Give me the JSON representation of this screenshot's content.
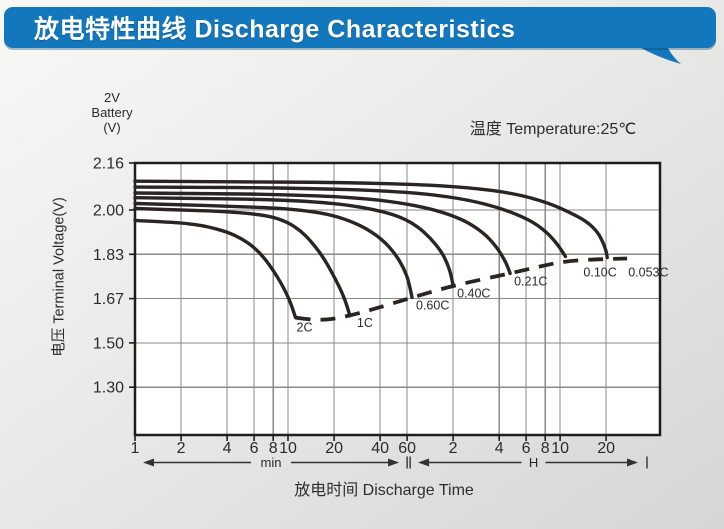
{
  "header": {
    "title": "放电特性曲线 Discharge Characteristics",
    "bg_color": "#1277BD"
  },
  "colors": {
    "curve": "#2A2422",
    "grid": "#8A8A8A",
    "border": "#1E1E1E",
    "text": "#2B2B2B",
    "plot_bg": "#FFFFFF"
  },
  "chart_data": {
    "type": "line",
    "title": "放电特性曲线 Discharge Characteristics",
    "xlabel": "放电时间 Discharge Time",
    "ylabel": "电压 Terminal Voltage(V)",
    "corner_label": [
      "2V",
      "Battery",
      "(V)"
    ],
    "annotation": "温度 Temperature:25℃",
    "grid": true,
    "x_axis": {
      "scale": "log",
      "unit": "minutes",
      "max_minutes": 2700,
      "ticks": [
        {
          "t": 1,
          "label": "1"
        },
        {
          "t": 2,
          "label": "2"
        },
        {
          "t": 4,
          "label": "4"
        },
        {
          "t": 6,
          "label": "6"
        },
        {
          "t": 8,
          "label": "8"
        },
        {
          "t": 10,
          "label": "10"
        },
        {
          "t": 20,
          "label": "20"
        },
        {
          "t": 40,
          "label": "40"
        },
        {
          "t": 60,
          "label": "60"
        },
        {
          "t": 120,
          "label": "2"
        },
        {
          "t": 240,
          "label": "4"
        },
        {
          "t": 360,
          "label": "6"
        },
        {
          "t": 480,
          "label": "8"
        },
        {
          "t": 600,
          "label": "10"
        },
        {
          "t": 1200,
          "label": "20"
        }
      ],
      "unit_segments": [
        {
          "label": "min",
          "from_t": 1,
          "to_t": 60
        },
        {
          "label": "H",
          "from_t": 60,
          "to_t": 2700
        }
      ]
    },
    "y_axis": {
      "tick_labels": [
        "2.16",
        "2.00",
        "1.83",
        "1.67",
        "1.50",
        "1.30"
      ],
      "ylim_top": 2.16
    },
    "series": [
      {
        "name": "2C",
        "points": [
          [
            1,
            1.96
          ],
          [
            1.5,
            1.955
          ],
          [
            2,
            1.95
          ],
          [
            2.5,
            1.944
          ],
          [
            3,
            1.936
          ],
          [
            4,
            1.916
          ],
          [
            5,
            1.89
          ],
          [
            6,
            1.857
          ],
          [
            7,
            1.817
          ],
          [
            8,
            1.772
          ],
          [
            9,
            1.727
          ],
          [
            10,
            1.677
          ],
          [
            10.7,
            1.634
          ],
          [
            11.2,
            1.597
          ]
        ]
      },
      {
        "name": "1C",
        "points": [
          [
            1,
            2.005
          ],
          [
            2,
            2.0
          ],
          [
            3,
            1.997
          ],
          [
            4,
            1.993
          ],
          [
            6,
            1.985
          ],
          [
            8,
            1.973
          ],
          [
            10,
            1.952
          ],
          [
            12,
            1.922
          ],
          [
            14,
            1.883
          ],
          [
            17,
            1.82
          ],
          [
            20,
            1.75
          ],
          [
            22.5,
            1.693
          ],
          [
            24.3,
            1.643
          ],
          [
            25.4,
            1.604
          ]
        ]
      },
      {
        "name": "0.60C",
        "points": [
          [
            1,
            2.022
          ],
          [
            2,
            2.018
          ],
          [
            4,
            2.013
          ],
          [
            8,
            2.007
          ],
          [
            12,
            2.0
          ],
          [
            18,
            1.985
          ],
          [
            25,
            1.96
          ],
          [
            33,
            1.927
          ],
          [
            42,
            1.883
          ],
          [
            50,
            1.833
          ],
          [
            57,
            1.782
          ],
          [
            62,
            1.728
          ],
          [
            64.6,
            1.674
          ]
        ]
      },
      {
        "name": "0.40C",
        "points": [
          [
            1,
            2.042
          ],
          [
            3,
            2.039
          ],
          [
            8,
            2.035
          ],
          [
            15,
            2.028
          ],
          [
            25,
            2.017
          ],
          [
            40,
            1.997
          ],
          [
            55,
            1.972
          ],
          [
            70,
            1.938
          ],
          [
            85,
            1.893
          ],
          [
            100,
            1.843
          ],
          [
            110,
            1.798
          ],
          [
            117,
            1.752
          ],
          [
            120,
            1.717
          ]
        ]
      },
      {
        "name": "0.21C",
        "points": [
          [
            1,
            2.058
          ],
          [
            4,
            2.056
          ],
          [
            10,
            2.052
          ],
          [
            25,
            2.044
          ],
          [
            50,
            2.028
          ],
          [
            90,
            2.002
          ],
          [
            140,
            1.963
          ],
          [
            190,
            1.913
          ],
          [
            230,
            1.86
          ],
          [
            260,
            1.81
          ],
          [
            275,
            1.781
          ],
          [
            283,
            1.761
          ]
        ]
      },
      {
        "name": "0.10C",
        "points": [
          [
            1,
            2.078
          ],
          [
            5,
            2.077
          ],
          [
            15,
            2.073
          ],
          [
            40,
            2.066
          ],
          [
            80,
            2.055
          ],
          [
            150,
            2.035
          ],
          [
            250,
            2.005
          ],
          [
            380,
            1.962
          ],
          [
            480,
            1.92
          ],
          [
            560,
            1.878
          ],
          [
            620,
            1.842
          ],
          [
            650,
            1.822
          ]
        ]
      },
      {
        "name": "0.053C",
        "points": [
          [
            1,
            2.098
          ],
          [
            8,
            2.096
          ],
          [
            25,
            2.093
          ],
          [
            70,
            2.087
          ],
          [
            150,
            2.077
          ],
          [
            300,
            2.057
          ],
          [
            500,
            2.025
          ],
          [
            700,
            1.99
          ],
          [
            900,
            1.955
          ],
          [
            1060,
            1.915
          ],
          [
            1160,
            1.868
          ],
          [
            1210,
            1.835
          ],
          [
            1220,
            1.818
          ]
        ]
      }
    ],
    "cutoff_locus": {
      "style": "dashed",
      "points": [
        [
          11.2,
          1.597
        ],
        [
          16,
          1.583
        ],
        [
          25.4,
          1.604
        ],
        [
          40,
          1.637
        ],
        [
          64.6,
          1.674
        ],
        [
          120,
          1.717
        ],
        [
          283,
          1.761
        ],
        [
          450,
          1.787
        ],
        [
          650,
          1.805
        ],
        [
          1000,
          1.812
        ],
        [
          1645,
          1.815
        ]
      ]
    }
  }
}
